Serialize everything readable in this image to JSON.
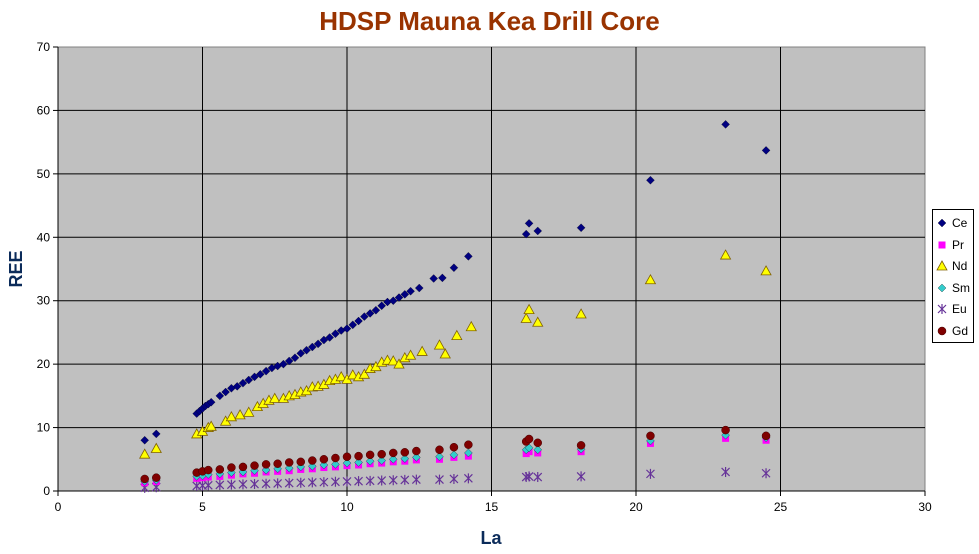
{
  "chart_data": {
    "type": "scatter",
    "title": "HDSP  Mauna Kea Drill Core",
    "xlabel": "La",
    "ylabel": "REE",
    "xlim": [
      0,
      30
    ],
    "ylim": [
      0,
      70
    ],
    "xticks": [
      0,
      5,
      10,
      15,
      20,
      25,
      30
    ],
    "yticks": [
      0,
      10,
      20,
      30,
      40,
      50,
      60,
      70
    ],
    "grid": true,
    "plot_background": "#c0c0c0",
    "legend_position": "right",
    "series": [
      {
        "name": "Ce",
        "marker": "diamond",
        "color": "#000080",
        "points": [
          [
            3.0,
            8.0
          ],
          [
            3.4,
            9.0
          ],
          [
            4.8,
            12.2
          ],
          [
            4.9,
            12.6
          ],
          [
            5.0,
            13.0
          ],
          [
            5.1,
            13.4
          ],
          [
            5.2,
            13.7
          ],
          [
            5.3,
            14.0
          ],
          [
            5.6,
            15.0
          ],
          [
            5.8,
            15.6
          ],
          [
            6.0,
            16.2
          ],
          [
            6.2,
            16.5
          ],
          [
            6.4,
            17.0
          ],
          [
            6.6,
            17.5
          ],
          [
            6.8,
            18.0
          ],
          [
            7.0,
            18.4
          ],
          [
            7.2,
            18.9
          ],
          [
            7.4,
            19.4
          ],
          [
            7.6,
            19.7
          ],
          [
            7.8,
            20.0
          ],
          [
            8.0,
            20.5
          ],
          [
            8.2,
            21.0
          ],
          [
            8.4,
            21.7
          ],
          [
            8.6,
            22.2
          ],
          [
            8.8,
            22.7
          ],
          [
            9.0,
            23.2
          ],
          [
            9.2,
            23.8
          ],
          [
            9.4,
            24.2
          ],
          [
            9.6,
            24.8
          ],
          [
            9.8,
            25.3
          ],
          [
            10.0,
            25.6
          ],
          [
            10.2,
            26.2
          ],
          [
            10.4,
            26.8
          ],
          [
            10.6,
            27.5
          ],
          [
            10.8,
            28.0
          ],
          [
            11.0,
            28.5
          ],
          [
            11.2,
            29.2
          ],
          [
            11.4,
            29.8
          ],
          [
            11.6,
            30.0
          ],
          [
            11.8,
            30.5
          ],
          [
            12.0,
            31.0
          ],
          [
            12.2,
            31.5
          ],
          [
            12.5,
            32.0
          ],
          [
            13.0,
            33.5
          ],
          [
            13.3,
            33.6
          ],
          [
            13.7,
            35.2
          ],
          [
            14.2,
            37.0
          ],
          [
            16.2,
            40.5
          ],
          [
            16.3,
            42.2
          ],
          [
            16.6,
            41.0
          ],
          [
            18.1,
            41.5
          ],
          [
            20.5,
            49.0
          ],
          [
            23.1,
            57.8
          ],
          [
            24.5,
            53.7
          ]
        ]
      },
      {
        "name": "Pr",
        "marker": "square",
        "color": "#ff00ff",
        "points": [
          [
            3.0,
            1.3
          ],
          [
            3.4,
            1.5
          ],
          [
            4.8,
            2.0
          ],
          [
            5.0,
            2.1
          ],
          [
            5.2,
            2.2
          ],
          [
            5.6,
            2.3
          ],
          [
            6.0,
            2.5
          ],
          [
            6.4,
            2.7
          ],
          [
            6.8,
            2.8
          ],
          [
            7.2,
            3.0
          ],
          [
            7.6,
            3.1
          ],
          [
            8.0,
            3.2
          ],
          [
            8.4,
            3.4
          ],
          [
            8.8,
            3.5
          ],
          [
            9.2,
            3.7
          ],
          [
            9.6,
            3.8
          ],
          [
            10.0,
            4.0
          ],
          [
            10.4,
            4.1
          ],
          [
            10.8,
            4.3
          ],
          [
            11.2,
            4.4
          ],
          [
            11.6,
            4.6
          ],
          [
            12.0,
            4.7
          ],
          [
            12.4,
            4.9
          ],
          [
            13.2,
            5.0
          ],
          [
            13.7,
            5.3
          ],
          [
            14.2,
            5.5
          ],
          [
            16.2,
            5.9
          ],
          [
            16.3,
            6.2
          ],
          [
            16.6,
            6.0
          ],
          [
            18.1,
            6.2
          ],
          [
            20.5,
            7.5
          ],
          [
            23.1,
            8.3
          ],
          [
            24.5,
            8.0
          ]
        ]
      },
      {
        "name": "Nd",
        "marker": "triangle",
        "color": "#ffff00",
        "points": [
          [
            3.0,
            5.8
          ],
          [
            3.4,
            6.7
          ],
          [
            4.8,
            9.0
          ],
          [
            5.0,
            9.4
          ],
          [
            5.2,
            10.0
          ],
          [
            5.3,
            10.2
          ],
          [
            5.8,
            11.0
          ],
          [
            6.0,
            11.7
          ],
          [
            6.3,
            12.0
          ],
          [
            6.6,
            12.4
          ],
          [
            6.9,
            13.3
          ],
          [
            7.1,
            13.8
          ],
          [
            7.3,
            14.3
          ],
          [
            7.5,
            14.6
          ],
          [
            7.8,
            14.6
          ],
          [
            8.0,
            15.0
          ],
          [
            8.2,
            15.2
          ],
          [
            8.4,
            15.6
          ],
          [
            8.6,
            15.8
          ],
          [
            8.8,
            16.4
          ],
          [
            9.0,
            16.5
          ],
          [
            9.2,
            16.8
          ],
          [
            9.4,
            17.4
          ],
          [
            9.6,
            17.6
          ],
          [
            9.8,
            18.0
          ],
          [
            10.0,
            17.6
          ],
          [
            10.2,
            18.3
          ],
          [
            10.4,
            18.0
          ],
          [
            10.6,
            18.4
          ],
          [
            10.8,
            19.3
          ],
          [
            11.0,
            19.6
          ],
          [
            11.2,
            20.3
          ],
          [
            11.4,
            20.6
          ],
          [
            11.6,
            20.5
          ],
          [
            11.8,
            20.0
          ],
          [
            12.0,
            21.0
          ],
          [
            12.2,
            21.4
          ],
          [
            12.6,
            22.0
          ],
          [
            13.2,
            23.0
          ],
          [
            13.4,
            21.6
          ],
          [
            13.8,
            24.5
          ],
          [
            14.3,
            25.9
          ],
          [
            16.2,
            27.2
          ],
          [
            16.3,
            28.6
          ],
          [
            16.6,
            26.6
          ],
          [
            18.1,
            27.9
          ],
          [
            20.5,
            33.3
          ],
          [
            23.1,
            37.2
          ],
          [
            24.5,
            34.7
          ]
        ]
      },
      {
        "name": "Sm",
        "marker": "diamond",
        "color": "#33cccc",
        "points": [
          [
            3.0,
            1.5
          ],
          [
            3.4,
            1.7
          ],
          [
            4.8,
            2.3
          ],
          [
            5.0,
            2.4
          ],
          [
            5.2,
            2.6
          ],
          [
            5.6,
            2.7
          ],
          [
            6.0,
            2.9
          ],
          [
            6.4,
            3.0
          ],
          [
            6.8,
            3.2
          ],
          [
            7.2,
            3.3
          ],
          [
            7.6,
            3.5
          ],
          [
            8.0,
            3.6
          ],
          [
            8.4,
            3.8
          ],
          [
            8.8,
            3.9
          ],
          [
            9.2,
            4.1
          ],
          [
            9.6,
            4.2
          ],
          [
            10.0,
            4.4
          ],
          [
            10.4,
            4.5
          ],
          [
            10.8,
            4.7
          ],
          [
            11.2,
            4.8
          ],
          [
            11.6,
            5.0
          ],
          [
            12.0,
            5.1
          ],
          [
            12.4,
            5.3
          ],
          [
            13.2,
            5.4
          ],
          [
            13.7,
            5.7
          ],
          [
            14.2,
            6.0
          ],
          [
            16.2,
            6.5
          ],
          [
            16.3,
            6.8
          ],
          [
            16.6,
            6.5
          ],
          [
            18.1,
            6.6
          ],
          [
            20.5,
            7.9
          ],
          [
            23.1,
            8.8
          ],
          [
            24.5,
            8.4
          ]
        ]
      },
      {
        "name": "Eu",
        "marker": "asterisk",
        "color": "#663399",
        "points": [
          [
            3.0,
            0.5
          ],
          [
            3.4,
            0.6
          ],
          [
            4.8,
            0.8
          ],
          [
            5.0,
            0.85
          ],
          [
            5.2,
            0.9
          ],
          [
            5.6,
            0.95
          ],
          [
            6.0,
            1.0
          ],
          [
            6.4,
            1.05
          ],
          [
            6.8,
            1.1
          ],
          [
            7.2,
            1.15
          ],
          [
            7.6,
            1.2
          ],
          [
            8.0,
            1.25
          ],
          [
            8.4,
            1.3
          ],
          [
            8.8,
            1.35
          ],
          [
            9.2,
            1.4
          ],
          [
            9.6,
            1.45
          ],
          [
            10.0,
            1.5
          ],
          [
            10.4,
            1.55
          ],
          [
            10.8,
            1.6
          ],
          [
            11.2,
            1.65
          ],
          [
            11.6,
            1.7
          ],
          [
            12.0,
            1.75
          ],
          [
            12.4,
            1.8
          ],
          [
            13.2,
            1.8
          ],
          [
            13.7,
            1.9
          ],
          [
            14.2,
            2.0
          ],
          [
            16.2,
            2.2
          ],
          [
            16.3,
            2.3
          ],
          [
            16.6,
            2.2
          ],
          [
            18.1,
            2.3
          ],
          [
            20.5,
            2.7
          ],
          [
            23.1,
            3.0
          ],
          [
            24.5,
            2.8
          ]
        ]
      },
      {
        "name": "Gd",
        "marker": "circle",
        "color": "#800000",
        "points": [
          [
            3.0,
            1.9
          ],
          [
            3.4,
            2.1
          ],
          [
            4.8,
            2.9
          ],
          [
            5.0,
            3.1
          ],
          [
            5.2,
            3.3
          ],
          [
            5.6,
            3.4
          ],
          [
            6.0,
            3.7
          ],
          [
            6.4,
            3.8
          ],
          [
            6.8,
            4.0
          ],
          [
            7.2,
            4.2
          ],
          [
            7.6,
            4.3
          ],
          [
            8.0,
            4.5
          ],
          [
            8.4,
            4.6
          ],
          [
            8.8,
            4.8
          ],
          [
            9.2,
            5.0
          ],
          [
            9.6,
            5.2
          ],
          [
            10.0,
            5.4
          ],
          [
            10.4,
            5.5
          ],
          [
            10.8,
            5.7
          ],
          [
            11.2,
            5.8
          ],
          [
            11.6,
            6.0
          ],
          [
            12.0,
            6.1
          ],
          [
            12.4,
            6.3
          ],
          [
            13.2,
            6.5
          ],
          [
            13.7,
            6.9
          ],
          [
            14.2,
            7.3
          ],
          [
            16.2,
            7.8
          ],
          [
            16.3,
            8.2
          ],
          [
            16.6,
            7.6
          ],
          [
            18.1,
            7.2
          ],
          [
            20.5,
            8.7
          ],
          [
            23.1,
            9.6
          ],
          [
            24.5,
            8.7
          ]
        ]
      }
    ]
  }
}
